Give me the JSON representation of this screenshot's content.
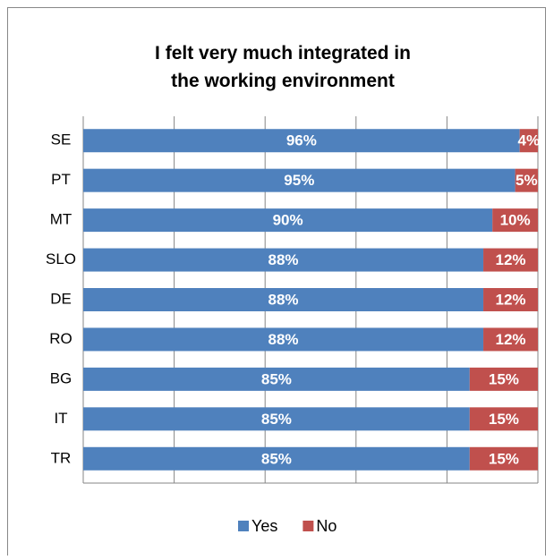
{
  "chart_data": {
    "type": "stacked_bar_horizontal",
    "title": "I felt very much integrated in the working environment",
    "categories": [
      "SE",
      "PT",
      "MT",
      "SLO",
      "DE",
      "RO",
      "BG",
      "IT",
      "TR"
    ],
    "series": [
      {
        "name": "Yes",
        "color": "#4f81bd",
        "values": [
          96,
          95,
          90,
          88,
          88,
          88,
          85,
          85,
          85
        ],
        "value_labels": [
          "96%",
          "95%",
          "90%",
          "88%",
          "88%",
          "88%",
          "85%",
          "85%",
          "85%"
        ]
      },
      {
        "name": "No",
        "color": "#c0504d",
        "values": [
          4,
          5,
          10,
          12,
          12,
          12,
          15,
          15,
          15
        ],
        "value_labels": [
          "4%",
          "5%",
          "10%",
          "12%",
          "12%",
          "12%",
          "15%",
          "15%",
          "15%"
        ]
      }
    ],
    "xlim": [
      0,
      100
    ],
    "xticks": [
      0,
      20,
      40,
      60,
      80,
      100
    ],
    "grid": true,
    "legend": "bottom"
  }
}
